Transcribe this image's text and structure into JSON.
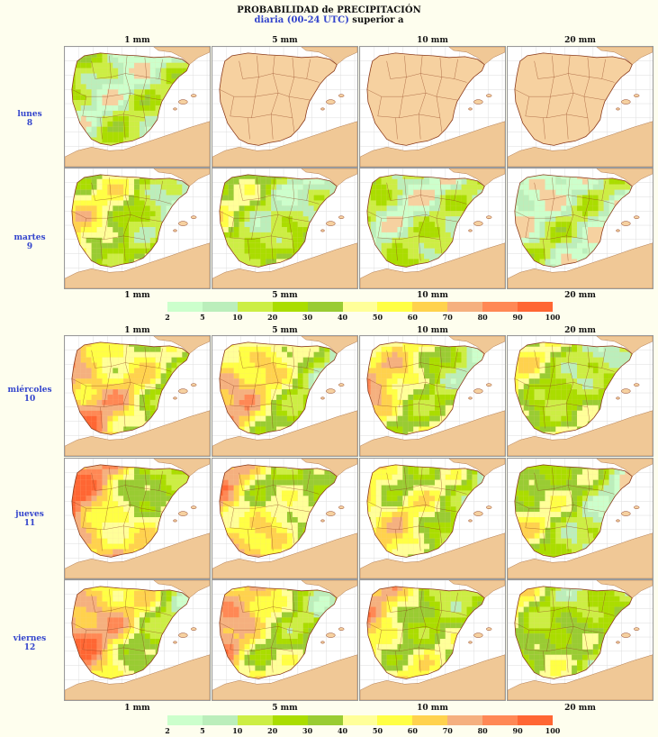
{
  "header": {
    "title": "PROBABILIDAD de PRECIPITACIÓN",
    "subtitle_blue": "diaria (00-24 UTC)",
    "subtitle_rest": " superior a"
  },
  "columns": [
    "1 mm",
    "5 mm",
    "10 mm",
    "20 mm"
  ],
  "days": [
    {
      "name": "lunes",
      "date": "8"
    },
    {
      "name": "martes",
      "date": "9"
    },
    {
      "name": "miércoles",
      "date": "10"
    },
    {
      "name": "jueves",
      "date": "11"
    },
    {
      "name": "viernes",
      "date": "12"
    }
  ],
  "legend": {
    "ticks": [
      "2",
      "5",
      "10",
      "20",
      "30",
      "40",
      "50",
      "60",
      "70",
      "80",
      "90",
      "100"
    ],
    "colors": [
      "#ccffcc",
      "#bbeebb",
      "#ccee44",
      "#aadd00",
      "#99cc33",
      "#ffff99",
      "#ffff44",
      "#ffd24d",
      "#f5b07f",
      "#ff8855",
      "#ff6633"
    ]
  },
  "colors": {
    "land": "#f6d1a0",
    "sea": "#ffffff",
    "africa": "#f0c896",
    "borders": "#8b3a1a",
    "label_blue": "#3344cc"
  },
  "panels": [
    [
      2,
      0,
      0,
      0
    ],
    [
      6,
      4,
      2,
      1
    ],
    [
      9,
      8,
      7,
      5
    ],
    [
      9,
      8,
      7,
      5
    ],
    [
      9,
      8,
      7,
      5
    ]
  ]
}
